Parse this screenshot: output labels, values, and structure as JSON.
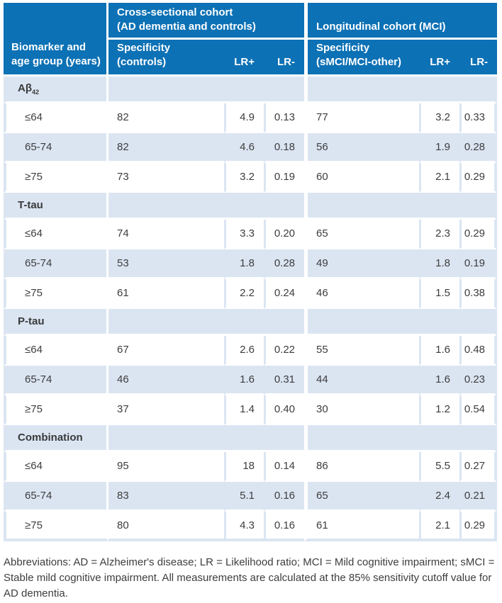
{
  "colors": {
    "header_blue": "#0c71b5",
    "row_light_blue": "#dbe5f2",
    "gutter_white": "#ffffff",
    "text_dark": "#3d3d3d"
  },
  "table": {
    "header": {
      "col_biomarker": "Biomarker and age group (years)",
      "group_cross": {
        "line1": "Cross-sectional cohort",
        "line2": "(AD dementia and controls)"
      },
      "group_long": {
        "line1": "Longitudinal cohort (MCI)",
        "line2": ""
      },
      "spec_cross": {
        "line1": "Specificity",
        "line2": "(controls)"
      },
      "spec_long": {
        "line1": "Specificity",
        "line2": "(sMCI/MCI-other)"
      },
      "lr_plus": "LR+",
      "lr_minus": "LR-"
    },
    "sections": [
      {
        "label": "Aβ",
        "label_sub": "42",
        "rows": [
          {
            "age": "≤64",
            "spec_cross": "82",
            "lr_plus_cross": "4.9",
            "lr_minus_cross": "0.13",
            "spec_long": "77",
            "lr_plus_long": "3.2",
            "lr_minus_long": "0.33"
          },
          {
            "age": "65-74",
            "spec_cross": "82",
            "lr_plus_cross": "4.6",
            "lr_minus_cross": "0.18",
            "spec_long": "56",
            "lr_plus_long": "1.9",
            "lr_minus_long": "0.28"
          },
          {
            "age": "≥75",
            "spec_cross": "73",
            "lr_plus_cross": "3.2",
            "lr_minus_cross": "0.19",
            "spec_long": "60",
            "lr_plus_long": "2.1",
            "lr_minus_long": "0.29"
          }
        ]
      },
      {
        "label": "T-tau",
        "label_sub": "",
        "rows": [
          {
            "age": "≤64",
            "spec_cross": "74",
            "lr_plus_cross": "3.3",
            "lr_minus_cross": "0.20",
            "spec_long": "65",
            "lr_plus_long": "2.3",
            "lr_minus_long": "0.29"
          },
          {
            "age": "65-74",
            "spec_cross": "53",
            "lr_plus_cross": "1.8",
            "lr_minus_cross": "0.28",
            "spec_long": "49",
            "lr_plus_long": "1.8",
            "lr_minus_long": "0.19"
          },
          {
            "age": "≥75",
            "spec_cross": "61",
            "lr_plus_cross": "2.2",
            "lr_minus_cross": "0.24",
            "spec_long": "46",
            "lr_plus_long": "1.5",
            "lr_minus_long": "0.38"
          }
        ]
      },
      {
        "label": "P-tau",
        "label_sub": "",
        "rows": [
          {
            "age": "≤64",
            "spec_cross": "67",
            "lr_plus_cross": "2.6",
            "lr_minus_cross": "0.22",
            "spec_long": "55",
            "lr_plus_long": "1.6",
            "lr_minus_long": "0.48"
          },
          {
            "age": "65-74",
            "spec_cross": "46",
            "lr_plus_cross": "1.6",
            "lr_minus_cross": "0.31",
            "spec_long": "44",
            "lr_plus_long": "1.6",
            "lr_minus_long": "0.23"
          },
          {
            "age": "≥75",
            "spec_cross": "37",
            "lr_plus_cross": "1.4",
            "lr_minus_cross": "0.40",
            "spec_long": "30",
            "lr_plus_long": "1.2",
            "lr_minus_long": "0.54"
          }
        ]
      },
      {
        "label": "Combination",
        "label_sub": "",
        "rows": [
          {
            "age": "≤64",
            "spec_cross": "95",
            "lr_plus_cross": "18",
            "lr_minus_cross": "0.14",
            "spec_long": "86",
            "lr_plus_long": "5.5",
            "lr_minus_long": "0.27"
          },
          {
            "age": "65-74",
            "spec_cross": "83",
            "lr_plus_cross": "5.1",
            "lr_minus_cross": "0.16",
            "spec_long": "65",
            "lr_plus_long": "2.4",
            "lr_minus_long": "0.21"
          },
          {
            "age": "≥75",
            "spec_cross": "80",
            "lr_plus_cross": "4.3",
            "lr_minus_cross": "0.16",
            "spec_long": "61",
            "lr_plus_long": "2.1",
            "lr_minus_long": "0.29"
          }
        ]
      }
    ]
  },
  "footnote": "Abbreviations: AD = Alzheimer's disease; LR = Likelihood ratio; MCI = Mild cognitive impairment; sMCI = Stable mild cognitive impairment. All measurements are calculated at the 85% sensitivity cutoff value for AD dementia."
}
